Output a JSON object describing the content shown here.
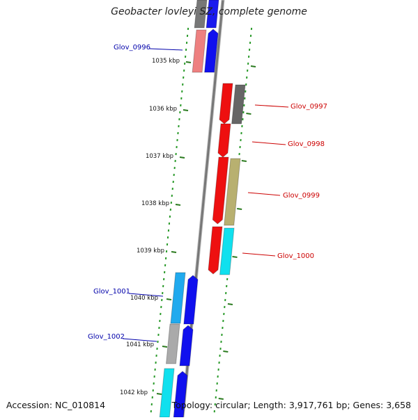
{
  "title": "Geobacter lovleyi SZ, complete genome",
  "accession_text": "Accession: NC_010814",
  "topology_text": "Topology: circular; Length: 3,917,761 bp; Genes: 3,658",
  "colors": {
    "backbone": "#888888",
    "tick": "#2a7a1e",
    "dots": "#2a9a2a",
    "label_minus": "#0000aa",
    "label_plus": "#cc0000"
  },
  "ticks": [
    "1035 kbp",
    "1036 kbp",
    "1037 kbp",
    "1038 kbp",
    "1039 kbp",
    "1040 kbp",
    "1041 kbp",
    "1042 kbp"
  ],
  "gene_labels": {
    "glov_0996": "Glov_0996",
    "glov_0997": "Glov_0997",
    "glov_0998": "Glov_0998",
    "glov_0999": "Glov_0999",
    "glov_1000": "Glov_1000",
    "glov_1001": "Glov_1001",
    "glov_1002": "Glov_1002"
  }
}
